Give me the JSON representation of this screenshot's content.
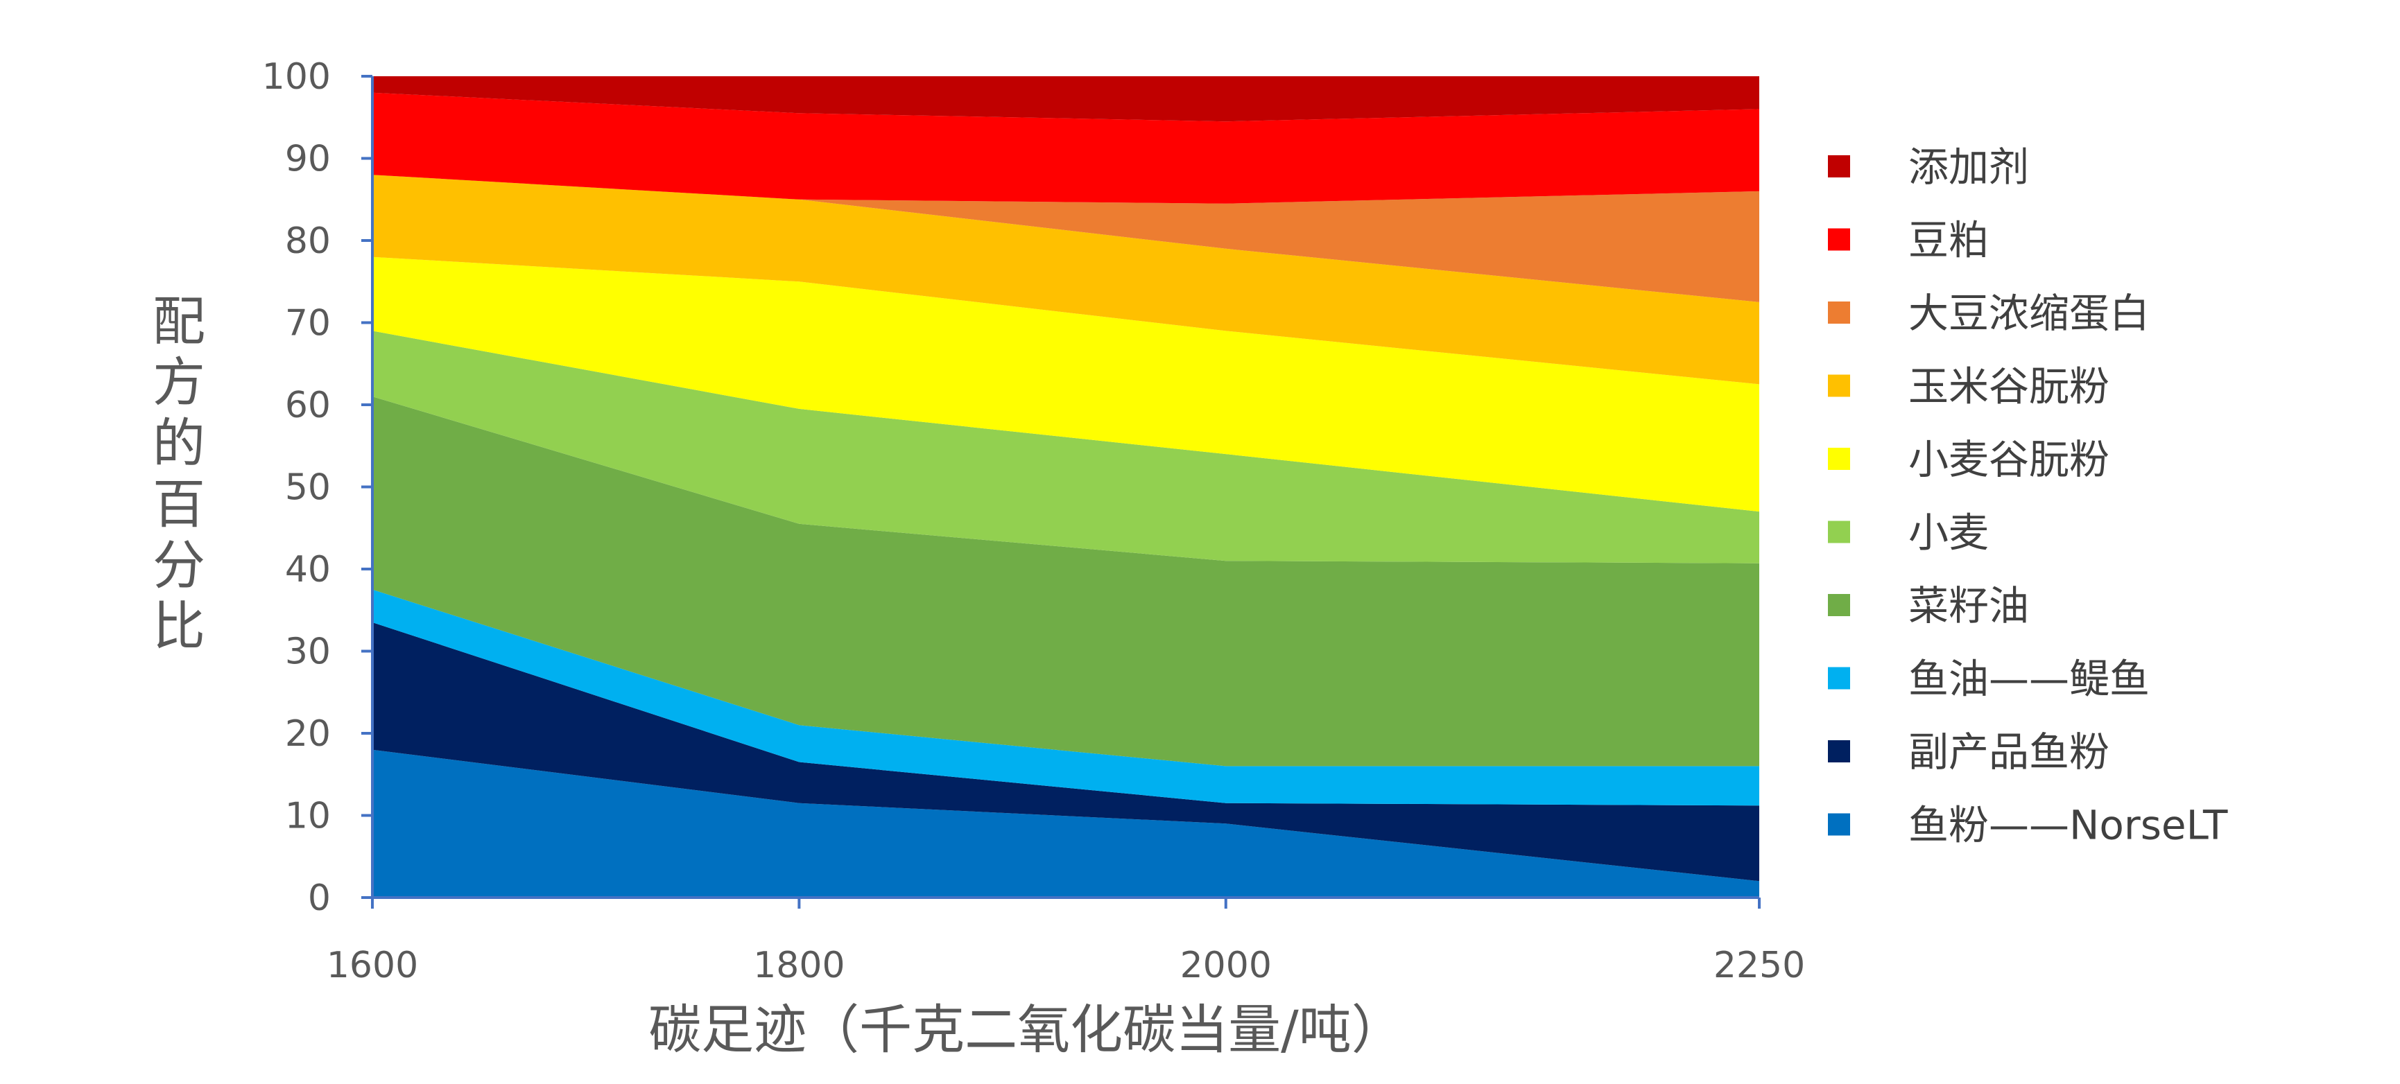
{
  "chart_data": {
    "type": "area",
    "stacked": true,
    "x": [
      1600,
      1800,
      2000,
      2250
    ],
    "xlabel": "碳足迹（千克二氧化碳当量/吨）",
    "ylabel": "配方的百分比",
    "ylim": [
      0,
      100
    ],
    "yticks": [
      0,
      10,
      20,
      30,
      40,
      50,
      60,
      70,
      80,
      90,
      100
    ],
    "xticks": [
      "1600",
      "1800",
      "2000",
      "2250"
    ],
    "legend_position": "right",
    "series": [
      {
        "name": "鱼粉——NorseLT",
        "color": "#0070C0",
        "values": [
          18,
          11.5,
          9,
          2
        ]
      },
      {
        "name": "副产品鱼粉",
        "color": "#002060",
        "values": [
          15.5,
          5,
          2.5,
          9.2
        ]
      },
      {
        "name": "鱼油——鳀鱼",
        "color": "#00B0F0",
        "values": [
          4,
          4.5,
          4.5,
          4.8
        ]
      },
      {
        "name": "菜籽油",
        "color": "#70AD47",
        "values": [
          23.5,
          24.5,
          25,
          24.7
        ]
      },
      {
        "name": "小麦",
        "color": "#92D050",
        "values": [
          8,
          14,
          13,
          6.3
        ]
      },
      {
        "name": "小麦谷朊粉",
        "color": "#FFFF00",
        "values": [
          9,
          15.5,
          15,
          15.5
        ]
      },
      {
        "name": "玉米谷朊粉",
        "color": "#FFC000",
        "values": [
          10,
          10,
          10,
          10
        ]
      },
      {
        "name": "大豆浓缩蛋白",
        "color": "#ED7D31",
        "values": [
          0,
          0,
          5.5,
          13.5
        ]
      },
      {
        "name": "豆粕",
        "color": "#FF0000",
        "values": [
          10,
          10.5,
          10,
          10
        ]
      },
      {
        "name": "添加剂",
        "color": "#C00000",
        "values": [
          2,
          4.5,
          5.5,
          4
        ]
      }
    ]
  }
}
